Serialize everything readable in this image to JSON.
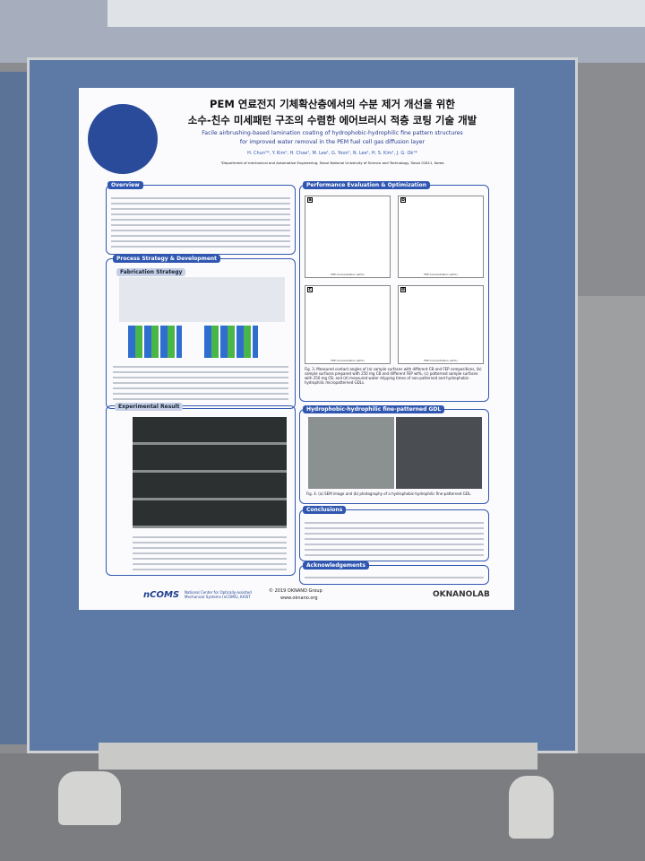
{
  "header": {
    "title_ko": [
      "PEM 연료전지 기체확산층에서의 수분 제거 개선을 위한",
      "소수-친수 미세패턴 구조의 수렴한 에어브러시 적층 코팅 기술 개발"
    ],
    "title_en": [
      "Facile airbrushing-based lamination coating of hydrophobic-hydrophilic fine pattern structures",
      "for improved water removal in the PEM fuel cell gas diffusion layer"
    ],
    "authors": "H. Chun¹*, Y. Kim¹, H. Chae¹, M. Lee¹, G. Yoon¹, N. Lee¹, H. S. Kim¹, J. G. Ok¹*",
    "affiliation": "¹Department of mechanical and Automotive Engineering, Seoul National University of Science and Technology, Seoul 01811, Korea"
  },
  "sections": {
    "overview": "Overview",
    "process": "Process Strategy & Development",
    "fabrication": "Fabrication Strategy",
    "experimental": "Experimental Result",
    "performance": "Performance Evaluation & Optimization",
    "gdl": "Hydrophobic-hydrophilic fine-patterned GDL",
    "conclusions": "Conclusions",
    "acknowledgements": "Acknowledgements"
  },
  "figures": {
    "panels": [
      "a",
      "b",
      "c",
      "d"
    ],
    "x_axis": "FEP Concentration (wt%)",
    "fig3": "Fig. 3. Measured contact angles of (a) sample surfaces with different CB and FEP compositions, (b) sample surfaces prepared with 250 mg CB and different FEP wt%, (c) patterned sample surfaces with 250 mg CB, and (d) measured water dripping times of non-patterned and hydrophobic-hydrophilic micropatterned GDLs.",
    "fig4": "Fig. 4. (a) SEM image and (b) photography of a hydrophobic-hydrophilic fine-patterned GDL."
  },
  "footer": {
    "logo": "nCOMS",
    "center": "National Center for Optically-assisted Mechanical Systems (nCOMS), KAIST",
    "copyright": "© 2019 OKNANO Group",
    "url": "www.oknano.org",
    "lab": "OKNANOLAB"
  }
}
